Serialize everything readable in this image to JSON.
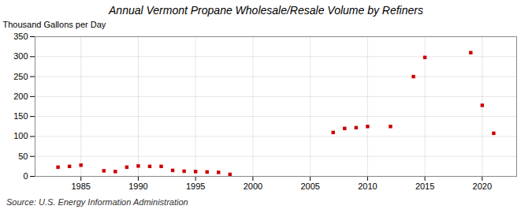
{
  "chart_data": {
    "type": "scatter",
    "title": "Annual Vermont Propane Wholesale/Resale Volume by Refiners",
    "y_label": "Thousand Gallons per Day",
    "annotations": [
      "Source: U.S. Energy Information Administration"
    ],
    "x": [
      1983,
      1984,
      1985,
      1987,
      1988,
      1989,
      1990,
      1991,
      1992,
      1993,
      1994,
      1995,
      1996,
      1997,
      1998,
      2007,
      2008,
      2009,
      2010,
      2012,
      2014,
      2015,
      2019,
      2020,
      2021
    ],
    "values": [
      23,
      25,
      28,
      14,
      12,
      23,
      26,
      25,
      25,
      15,
      13,
      12,
      11,
      10,
      5,
      110,
      120,
      122,
      125,
      125,
      250,
      298,
      310,
      178,
      108
    ],
    "color": "#cc0000",
    "marker": "square",
    "xlim": [
      1981,
      2023
    ],
    "ylim": [
      0,
      350
    ],
    "xticks": [
      1985,
      1990,
      1995,
      2000,
      2005,
      2010,
      2015,
      2020
    ],
    "yticks": [
      0,
      50,
      100,
      150,
      200,
      250,
      300,
      350
    ],
    "grid": true
  }
}
